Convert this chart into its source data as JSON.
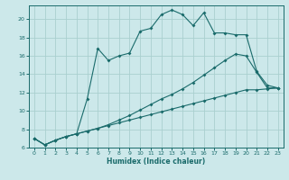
{
  "xlabel": "Humidex (Indice chaleur)",
  "bg_color": "#cce8ea",
  "line_color": "#1a6b6b",
  "grid_color": "#aacfcf",
  "xlim": [
    -0.5,
    23.5
  ],
  "ylim": [
    6,
    21.5
  ],
  "xticks": [
    0,
    1,
    2,
    3,
    4,
    5,
    6,
    7,
    8,
    9,
    10,
    11,
    12,
    13,
    14,
    15,
    16,
    17,
    18,
    19,
    20,
    21,
    22,
    23
  ],
  "yticks": [
    6,
    8,
    10,
    12,
    14,
    16,
    18,
    20
  ],
  "line1_x": [
    0,
    1,
    2,
    3,
    4,
    5,
    6,
    7,
    8,
    9,
    10,
    11,
    12,
    13,
    14,
    15,
    16,
    17,
    18,
    19,
    20,
    21,
    22,
    23
  ],
  "line1_y": [
    7.0,
    6.3,
    6.8,
    7.2,
    7.5,
    7.8,
    8.1,
    8.4,
    8.7,
    9.0,
    9.3,
    9.6,
    9.9,
    10.2,
    10.5,
    10.8,
    11.1,
    11.4,
    11.7,
    12.0,
    12.3,
    12.3,
    12.4,
    12.5
  ],
  "line2_x": [
    0,
    1,
    2,
    3,
    4,
    5,
    6,
    7,
    8,
    9,
    10,
    11,
    12,
    13,
    14,
    15,
    16,
    17,
    18,
    19,
    20,
    21,
    22,
    23
  ],
  "line2_y": [
    7.0,
    6.3,
    6.8,
    7.2,
    7.5,
    7.8,
    8.1,
    8.5,
    9.0,
    9.5,
    10.1,
    10.7,
    11.3,
    11.8,
    12.4,
    13.1,
    13.9,
    14.7,
    15.5,
    16.2,
    16.0,
    14.2,
    12.5,
    12.5
  ],
  "line3_x": [
    0,
    1,
    2,
    3,
    4,
    5,
    6,
    7,
    8,
    9,
    10,
    11,
    12,
    13,
    14,
    15,
    16,
    17,
    18,
    19,
    20,
    21,
    22,
    23
  ],
  "line3_y": [
    7.0,
    6.3,
    6.8,
    7.2,
    7.5,
    11.3,
    16.8,
    15.5,
    16.0,
    16.3,
    18.7,
    19.0,
    20.5,
    21.0,
    20.5,
    19.3,
    20.7,
    18.5,
    18.5,
    18.3,
    18.3,
    14.3,
    12.8,
    12.5
  ]
}
